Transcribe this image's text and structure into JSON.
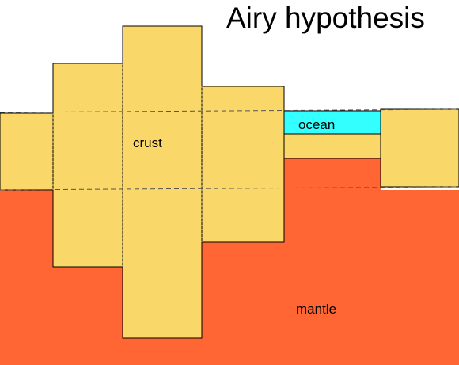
{
  "title": "Airy hypothesis",
  "labels": {
    "crust": "crust",
    "ocean": "ocean",
    "mantle": "mantle"
  },
  "colors": {
    "background": "#ffffff",
    "mantle": "#ff6633",
    "crust": "#f9d768",
    "ocean": "#33ffff",
    "outline": "#000000",
    "reference_line": "#555555"
  }
}
